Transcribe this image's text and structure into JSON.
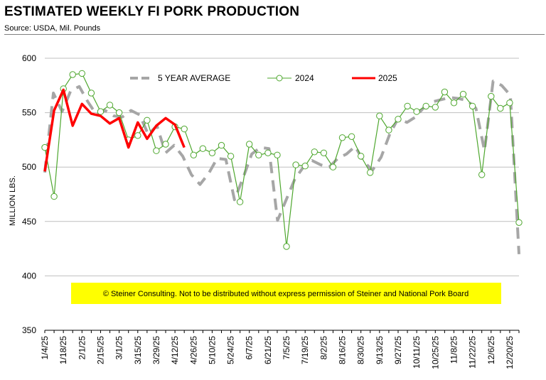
{
  "chart_data": {
    "type": "line",
    "title": "ESTIMATED WEEKLY FI PORK PRODUCTION",
    "subtitle": "Source: USDA, Mil. Pounds",
    "ylabel": "MILLION LBS.",
    "ylim": [
      350,
      600
    ],
    "yticks": [
      350,
      400,
      450,
      500,
      550,
      600
    ],
    "grid": true,
    "legend_position": "top-center",
    "x_tick_labels": [
      "1/4/25",
      "1/18/25",
      "2/1/25",
      "2/15/25",
      "3/1/25",
      "3/15/25",
      "3/29/25",
      "4/12/25",
      "4/26/25",
      "5/10/25",
      "5/24/25",
      "6/7/25",
      "6/21/25",
      "7/5/25",
      "7/19/25",
      "8/2/25",
      "8/16/25",
      "8/30/25",
      "9/13/25",
      "9/27/25",
      "10/11/25",
      "10/25/25",
      "11/8/25",
      "11/22/25",
      "12/6/25",
      "12/20/25"
    ],
    "series": [
      {
        "name": "5 YEAR AVERAGE",
        "color": "#a6a6a6",
        "style": "dashed",
        "values": [
          495,
          568,
          551,
          570,
          574,
          560,
          548,
          552,
          547,
          546,
          552,
          548,
          530,
          538,
          513,
          520,
          510,
          493,
          484,
          494,
          508,
          507,
          470,
          490,
          512,
          518,
          517,
          451,
          470,
          489,
          500,
          506,
          502,
          500,
          508,
          512,
          519,
          505,
          497,
          509,
          530,
          545,
          541,
          546,
          555,
          560,
          562,
          564,
          563,
          561,
          554,
          515,
          579,
          575,
          566,
          420
        ]
      },
      {
        "name": "2024",
        "color": "#4ea72e",
        "style": "solid-marker",
        "values": [
          518,
          473,
          572,
          585,
          586,
          568,
          551,
          557,
          550,
          525,
          529,
          543,
          515,
          521,
          537,
          535,
          511,
          517,
          513,
          520,
          510,
          468,
          521,
          511,
          513,
          511,
          427,
          502,
          501,
          514,
          513,
          500,
          527,
          528,
          510,
          495,
          547,
          534,
          544,
          556,
          551,
          556,
          555,
          569,
          559,
          567,
          556,
          493,
          565,
          554,
          559,
          449
        ]
      },
      {
        "name": "2025",
        "color": "#ff0000",
        "style": "solid-thick",
        "values": [
          496,
          552,
          571,
          538,
          558,
          549,
          547,
          540,
          545,
          518,
          541,
          526,
          538,
          545,
          539,
          518
        ]
      }
    ],
    "annotation": "© Steiner Consulting.  Not to be distributed without express permission of Steiner and National Pork Board",
    "annotation_bg": "#ffff00"
  }
}
